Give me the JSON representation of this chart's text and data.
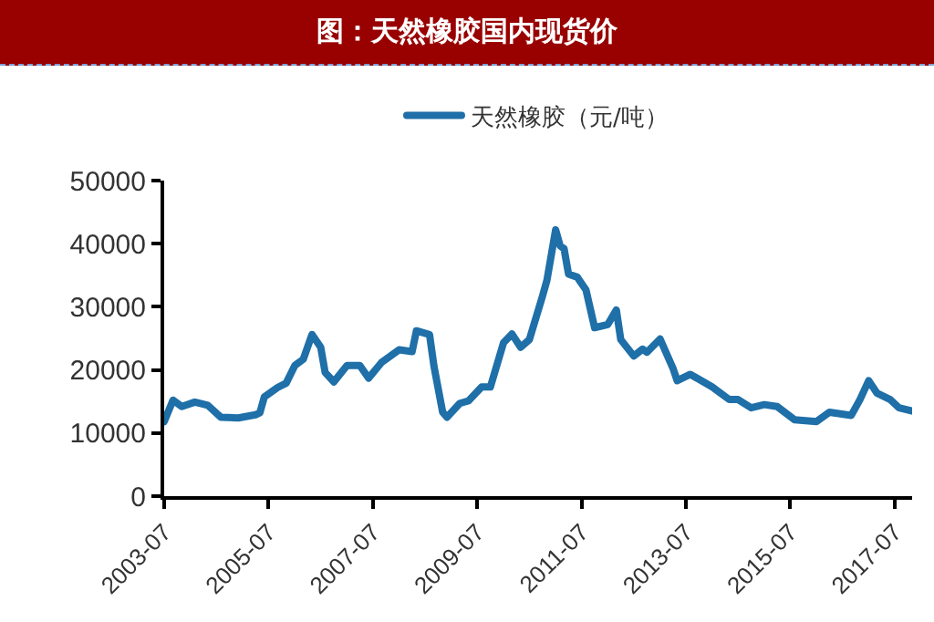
{
  "chart_data": {
    "type": "line",
    "title": "图：天然橡胶国内现货价",
    "x": [
      "2003-07",
      "2003-09",
      "2003-11",
      "2004-02",
      "2004-05",
      "2004-08",
      "2004-12",
      "2005-04",
      "2005-05",
      "2005-06",
      "2005-09",
      "2005-11",
      "2006-01",
      "2006-03",
      "2006-05",
      "2006-07",
      "2006-08",
      "2006-10",
      "2007-01",
      "2007-04",
      "2007-06",
      "2007-09",
      "2008-01",
      "2008-04",
      "2008-05",
      "2008-08",
      "2008-09",
      "2008-11",
      "2008-12",
      "2009-03",
      "2009-05",
      "2009-08",
      "2009-10",
      "2010-01",
      "2010-03",
      "2010-05",
      "2010-07",
      "2010-10",
      "2010-11",
      "2011-01",
      "2011-02",
      "2011-03",
      "2011-04",
      "2011-06",
      "2011-08",
      "2011-10",
      "2012-01",
      "2012-03",
      "2012-04",
      "2012-07",
      "2012-09",
      "2012-10",
      "2013-01",
      "2013-04",
      "2013-05",
      "2013-08",
      "2014-01",
      "2014-05",
      "2014-07",
      "2014-10",
      "2015-01",
      "2015-04",
      "2015-08",
      "2016-01",
      "2016-04",
      "2016-09",
      "2016-11",
      "2017-01",
      "2017-03",
      "2017-06",
      "2017-08",
      "2017-11"
    ],
    "series": [
      {
        "name": "天然橡胶（元/吨）",
        "color": "#1f6fa8",
        "values": [
          11800,
          15200,
          14200,
          14900,
          14400,
          12500,
          12400,
          12900,
          13200,
          15700,
          17200,
          17900,
          20700,
          21700,
          25600,
          23600,
          19600,
          18100,
          20700,
          20700,
          18700,
          21200,
          23200,
          22900,
          26200,
          25600,
          20600,
          13300,
          12500,
          14700,
          15100,
          17300,
          17300,
          24300,
          25700,
          23600,
          24800,
          31700,
          34200,
          42200,
          39700,
          39200,
          35200,
          34700,
          32700,
          26700,
          27200,
          29500,
          24800,
          22200,
          23300,
          22800,
          24900,
          20300,
          18300,
          19300,
          17300,
          15300,
          15300,
          14000,
          14500,
          14200,
          12100,
          11800,
          13300,
          12800,
          15300,
          18300,
          16300,
          15300,
          14000,
          13500
        ]
      }
    ],
    "xlim": [
      "2003-07",
      "2017-11"
    ],
    "xticks": [
      "2003-07",
      "2005-07",
      "2007-07",
      "2009-07",
      "2011-07",
      "2013-07",
      "2015-07",
      "2017-07"
    ],
    "ylim": [
      0,
      50000
    ],
    "yticks": [
      0,
      10000,
      20000,
      30000,
      40000,
      50000
    ],
    "grid": false,
    "legend": "top",
    "marker": "none",
    "line_style": "solid"
  }
}
